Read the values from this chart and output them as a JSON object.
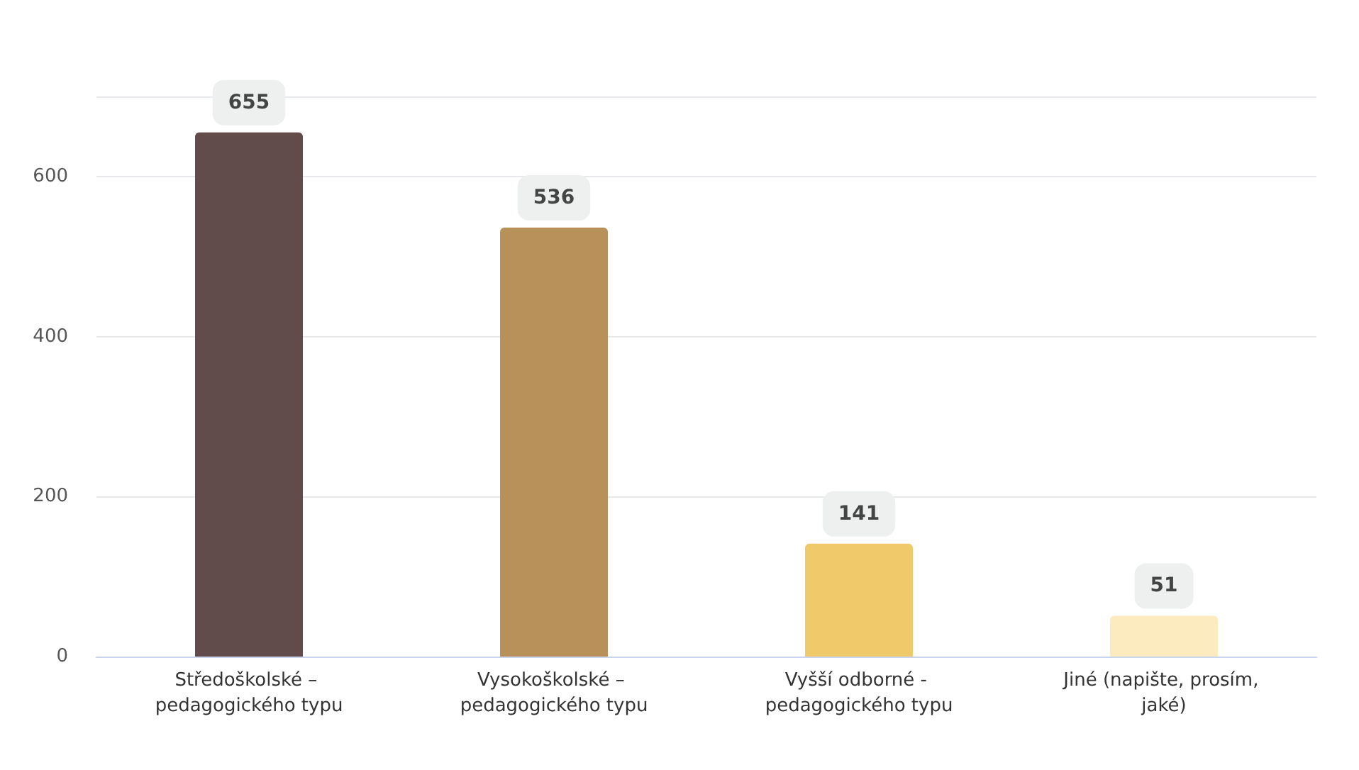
{
  "chart_data": {
    "type": "bar",
    "categories": [
      "Středoškolské – pedagogického typu",
      "Vysokoškolské – pedagogického typu",
      "Vyšší odborné - pedagogického typu",
      "Jiné (napište, prosím, jaké)"
    ],
    "values": [
      655,
      536,
      141,
      51
    ],
    "colors": [
      "#614b4b",
      "#b8915a",
      "#f0c96a",
      "#fdebc0"
    ],
    "ylim": [
      0,
      700
    ],
    "yticks": [
      0,
      200,
      400,
      600,
      {
        "value": 700,
        "label": null
      }
    ],
    "grid": "y",
    "data_labels": true
  }
}
